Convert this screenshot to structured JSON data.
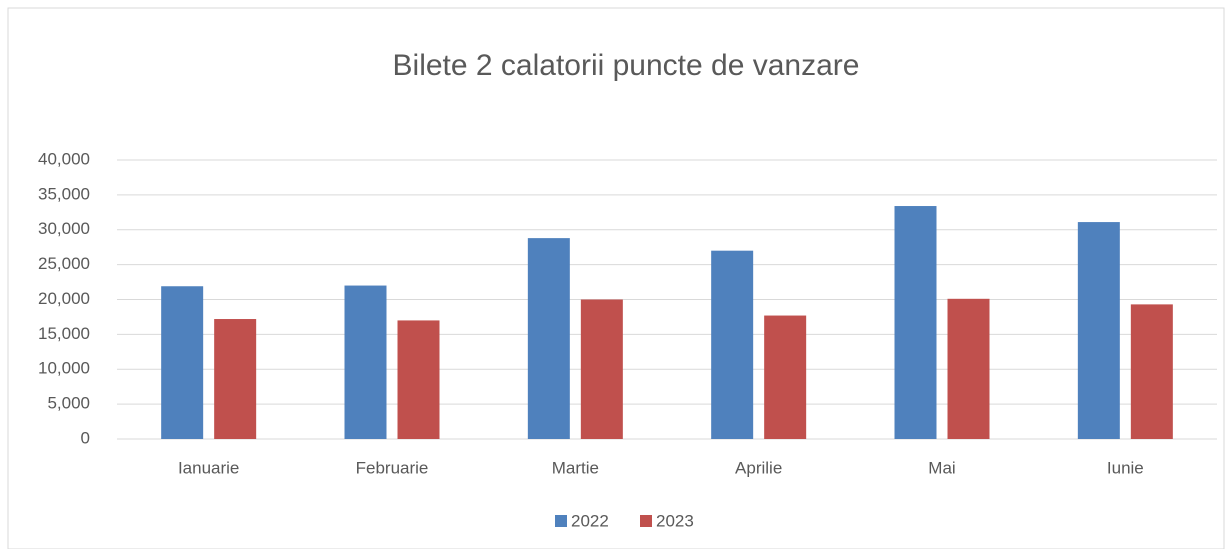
{
  "chart_data": {
    "type": "bar",
    "title": "Bilete 2 calatorii puncte de vanzare",
    "categories": [
      "Ianuarie",
      "Februarie",
      "Martie",
      "Aprilie",
      "Mai",
      "Iunie"
    ],
    "series": [
      {
        "name": "2022",
        "color": "#4f81bd",
        "values": [
          21900,
          22000,
          28800,
          27000,
          33400,
          31100
        ]
      },
      {
        "name": "2023",
        "color": "#c0504d",
        "values": [
          17200,
          17000,
          20000,
          17700,
          20100,
          19300
        ]
      }
    ],
    "ylim": [
      0,
      40000
    ],
    "yticks": [
      0,
      {
        "value": 5000,
        "label": "5,000"
      },
      {
        "value": 10000,
        "label": "10,000"
      },
      {
        "value": 15000,
        "label": "15,000"
      },
      {
        "value": 20000,
        "label": "20,000"
      },
      {
        "value": 25000,
        "label": "25,000"
      },
      {
        "value": 30000,
        "label": "30,000"
      },
      {
        "value": 35000,
        "label": "35,000"
      },
      {
        "value": 40000,
        "label": "40,000"
      }
    ],
    "grid": true,
    "legend": "bottom"
  }
}
